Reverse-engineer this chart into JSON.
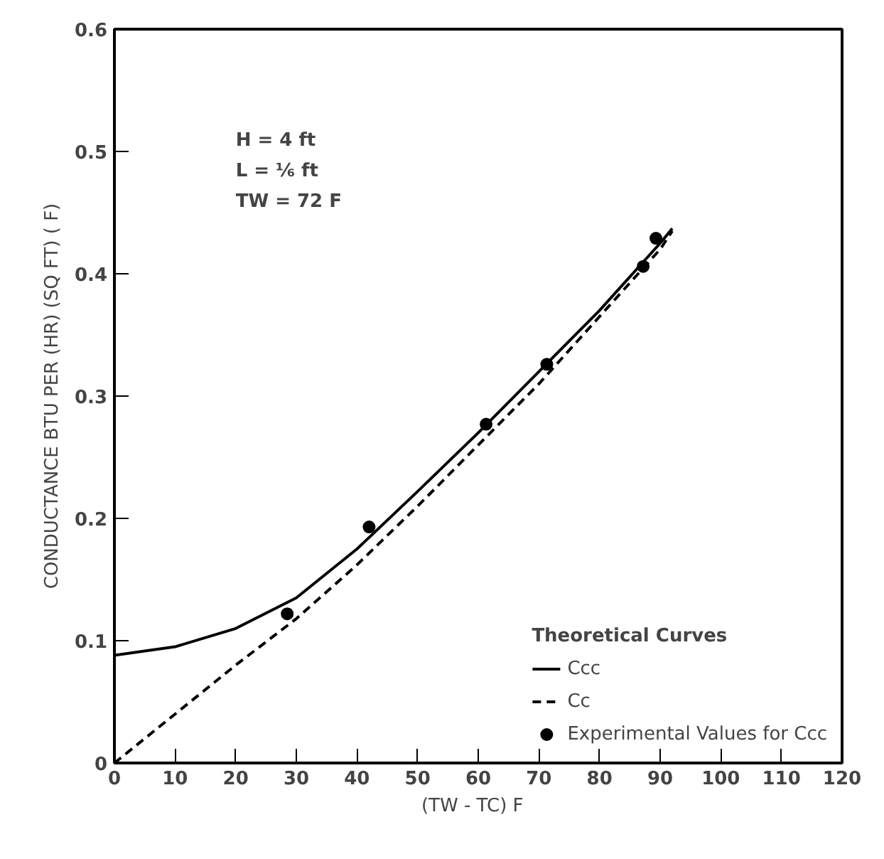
{
  "chart_data": {
    "type": "line",
    "xlabel": "(TW - TC)   F",
    "ylabel": "CONDUCTANCE BTU PER (HR) (SQ FT) ( F)",
    "legend_title": "Theoretical Curves",
    "legend": "bottom right",
    "annotations": [
      "H   = 4 ft",
      "L   = ⅙ ft",
      "TW = 72 F"
    ],
    "xlim": [
      0,
      120
    ],
    "xticks": [
      0,
      10,
      20,
      30,
      40,
      50,
      60,
      70,
      80,
      90,
      100,
      110,
      120
    ],
    "ylim": [
      0,
      0.6
    ],
    "yticks": [
      0,
      0.1,
      0.2,
      0.3,
      0.4,
      0.5,
      0.6
    ],
    "series": [
      {
        "name": "Ccc",
        "line_style": "solid",
        "color": "#000000",
        "x": [
          0,
          10,
          20,
          30,
          40,
          50,
          60,
          70,
          80,
          90,
          92
        ],
        "values": [
          0.088,
          0.095,
          0.11,
          0.135,
          0.175,
          0.222,
          0.27,
          0.32,
          0.37,
          0.425,
          0.437
        ]
      },
      {
        "name": "Cc",
        "line_style": "dashed",
        "color": "#000000",
        "x": [
          0,
          10,
          20,
          30,
          40,
          50,
          60,
          70,
          80,
          90,
          92
        ],
        "values": [
          0,
          0.04,
          0.08,
          0.118,
          0.162,
          0.21,
          0.26,
          0.31,
          0.365,
          0.42,
          0.435
        ]
      },
      {
        "name": "Experimental Values for Ccc",
        "type": "scatter",
        "marker": "circle",
        "color": "#000000",
        "x": [
          28.5,
          42,
          61.3,
          71.3,
          87.2,
          89.3
        ],
        "values": [
          0.122,
          0.193,
          0.277,
          0.326,
          0.406,
          0.429
        ]
      }
    ]
  }
}
